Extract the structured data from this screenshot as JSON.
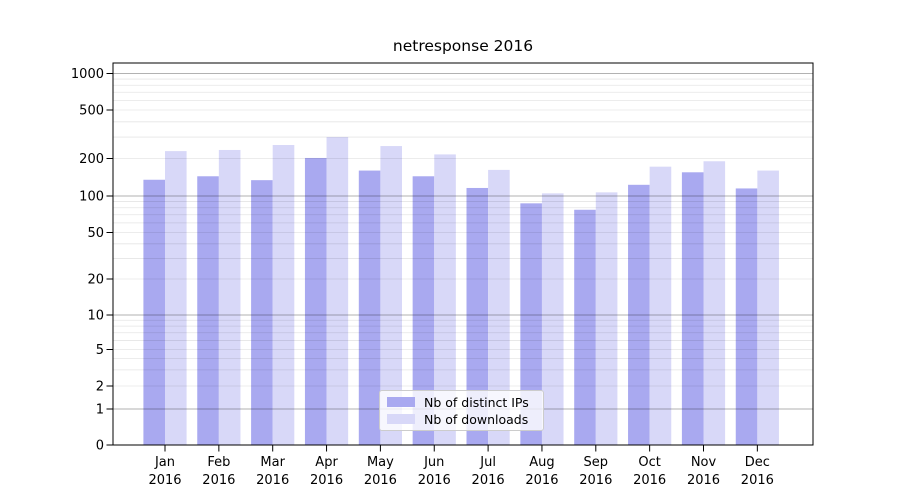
{
  "chart_data": {
    "type": "bar",
    "title": "netresponse 2016",
    "yscale": "symlog",
    "grid": true,
    "legend_position": "lower center (inside plot)",
    "y_ticks": [
      0,
      1,
      2,
      5,
      10,
      20,
      50,
      100,
      200,
      500,
      1000
    ],
    "ylim": [
      0,
      1200
    ],
    "categories": [
      "Jan",
      "Feb",
      "Mar",
      "Apr",
      "May",
      "Jun",
      "Jul",
      "Aug",
      "Sep",
      "Oct",
      "Nov",
      "Dec"
    ],
    "year_label": "2016",
    "series": [
      {
        "name": "Nb of distinct IPs",
        "color": "#a9a9f0",
        "values": [
          135,
          144,
          134,
          202,
          160,
          144,
          116,
          87,
          77,
          123,
          155,
          115
        ]
      },
      {
        "name": "Nb of downloads",
        "color": "#d8d8f8",
        "values": [
          230,
          235,
          258,
          300,
          253,
          216,
          162,
          105,
          107,
          172,
          190,
          160
        ]
      }
    ]
  }
}
